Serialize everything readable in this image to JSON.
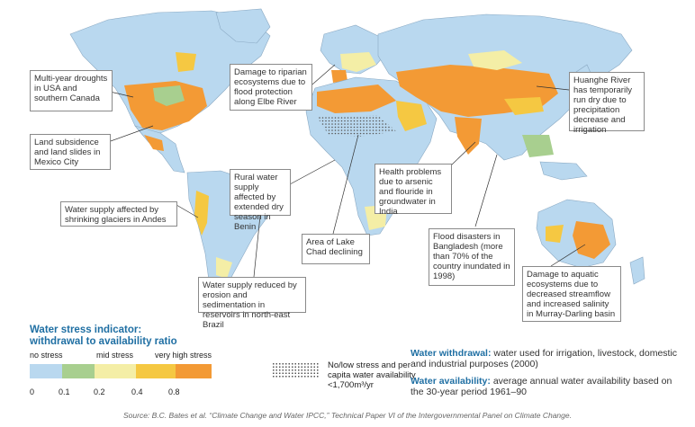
{
  "colors": {
    "ocean": "#ffffff",
    "no_stress": "#b9d8ef",
    "low": "#a8cf8f",
    "mid": "#f4eea6",
    "high": "#f5c842",
    "very_high": "#f39a35",
    "border": "#8aa9c3"
  },
  "callouts": [
    {
      "text": "Multi-year droughts in USA and southern Canada"
    },
    {
      "text": "Land subsidence and land slides in Mexico City"
    },
    {
      "text": "Water supply affected by shrinking glaciers in Andes"
    },
    {
      "text": "Damage to riparian ecosystems due to flood protection along Elbe River"
    },
    {
      "text": "Rural water supply affected by extended dry season in Benin"
    },
    {
      "text": "Area of Lake Chad declining"
    },
    {
      "text": "Water supply reduced by erosion and sedimentation in reservoirs in north-east Brazil"
    },
    {
      "text": "Health problems due to arsenic and flouride in groundwater in India"
    },
    {
      "text": "Flood disasters in Bangladesh (more than 70% of the country inundated in 1998)"
    },
    {
      "text": "Huanghe River has temporarily run dry due to precipitation decrease and irrigation"
    },
    {
      "text": "Damage to aquatic ecosystems due to decreased streamflow and increased salinity in Murray-Darling basin"
    }
  ],
  "legend": {
    "title_line1": "Water stress indicator:",
    "title_line2": "withdrawal to availability ratio",
    "no_stress": "no stress",
    "mid_stress": "mid stress",
    "very_high_stress": "very high stress",
    "ticks": [
      "0",
      "0.1",
      "0.2",
      "0.4",
      "0.8"
    ],
    "hatch_label": "No/low stress and per capita water availability <1,700m³/yr"
  },
  "definitions": {
    "withdrawal_term": "Water withdrawal:",
    "withdrawal_text": " water used for irrigation, livestock, domestic and industrial purposes (2000)",
    "availability_term": "Water availability:",
    "availability_text": " average annual water availability based on the 30-year period 1961–90"
  },
  "source": "Source: B.C. Bates et al. “Climate Change and Water IPCC,” Technical Paper VI of the Intergovernmental Panel on Climate Change."
}
